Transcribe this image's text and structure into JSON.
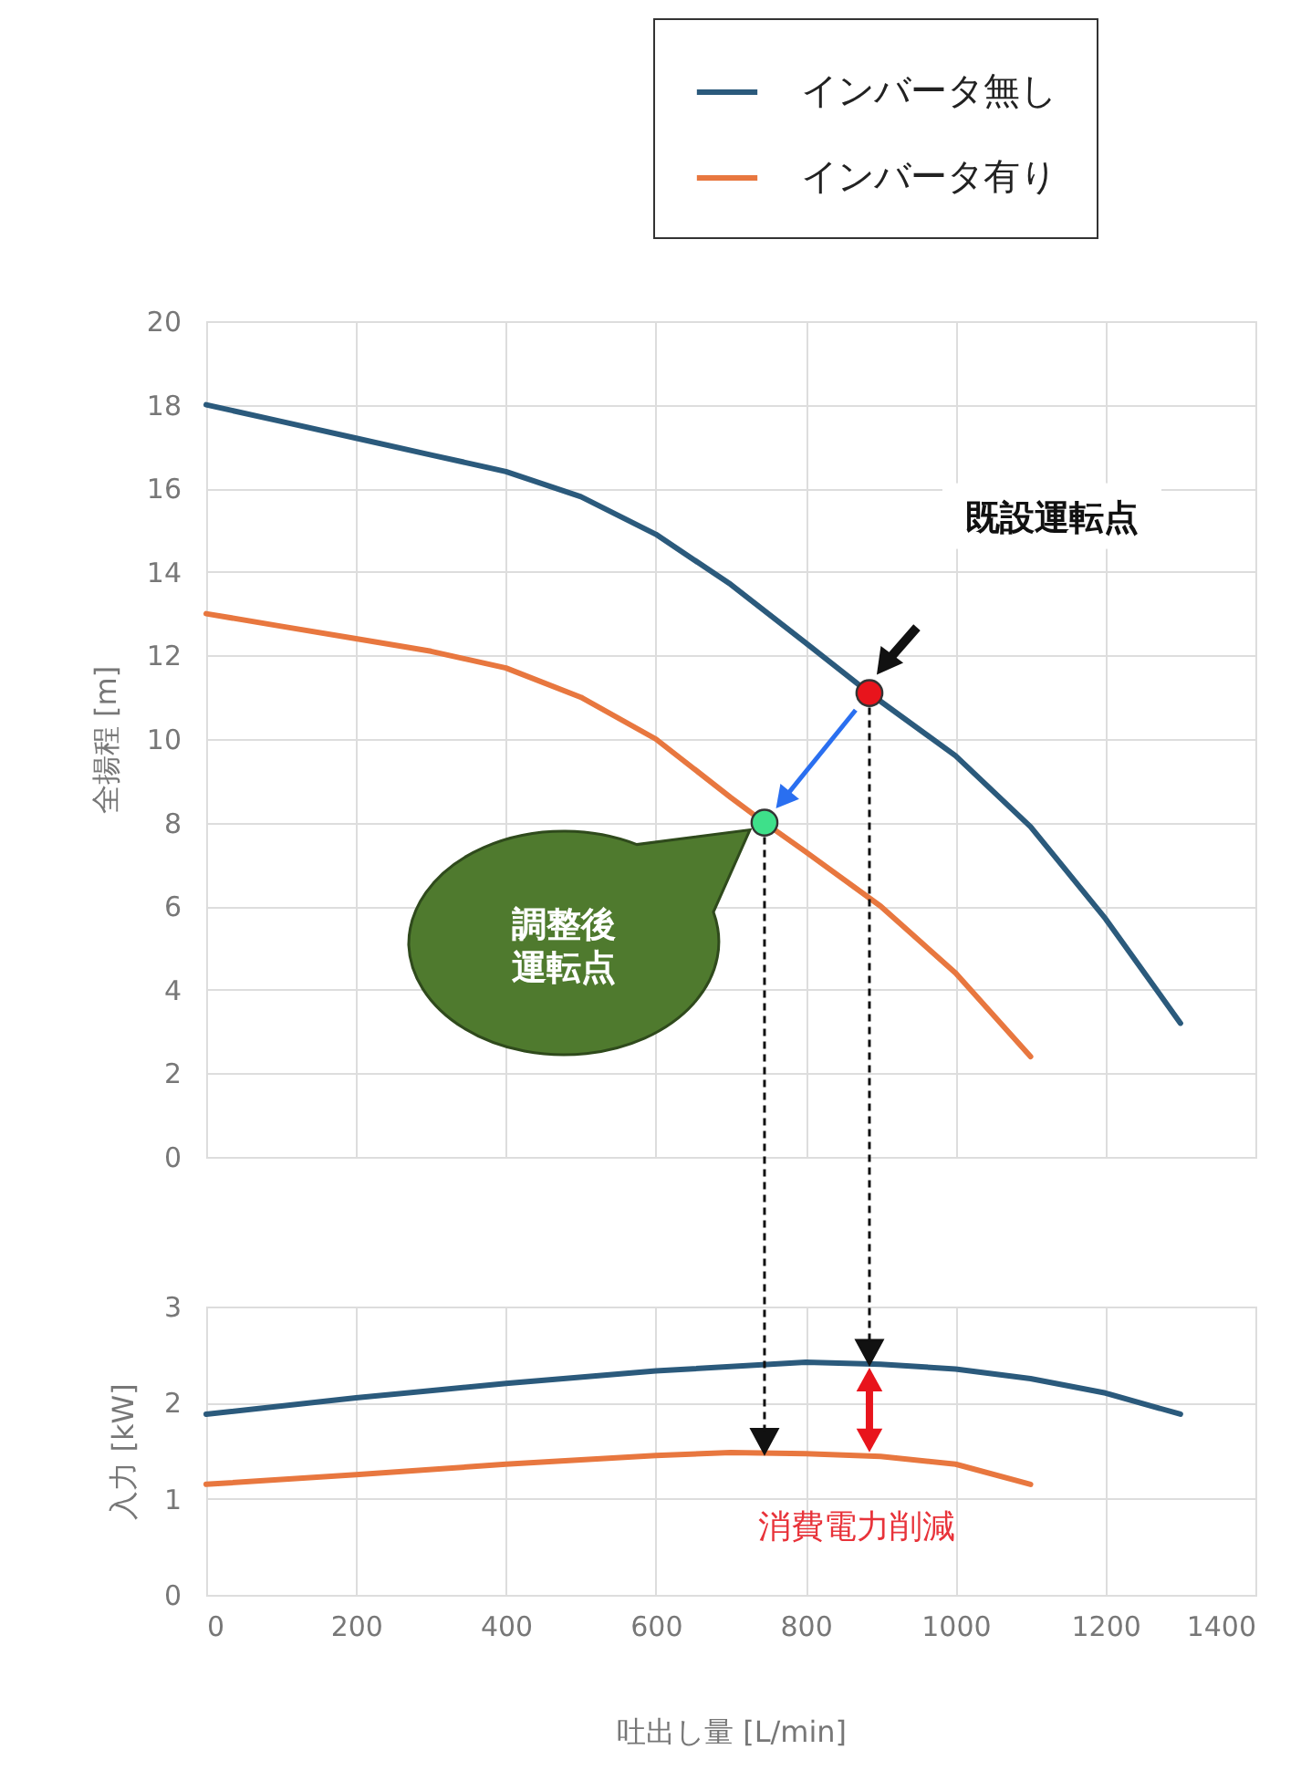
{
  "chart_data": [
    {
      "type": "line",
      "ylabel": "全揚程 [m]",
      "xlim": [
        0,
        1400
      ],
      "xticks": [
        0,
        200,
        400,
        600,
        800,
        1000,
        1200,
        1400
      ],
      "ylim": [
        0,
        20
      ],
      "yticks": [
        0,
        2,
        4,
        6,
        8,
        10,
        12,
        14,
        16,
        18,
        20
      ],
      "grid": true,
      "legend": "top right",
      "tick_labels": "y",
      "series": [
        {
          "name": "インバータ無し",
          "color": "#2b5a7c",
          "x": [
            0,
            100,
            200,
            300,
            400,
            500,
            600,
            700,
            800,
            885,
            900,
            1000,
            1100,
            1200,
            1300
          ],
          "values": [
            18,
            17.6,
            17.2,
            16.8,
            16.4,
            15.8,
            14.9,
            13.7,
            12.3,
            11.1,
            10.9,
            9.6,
            7.9,
            5.7,
            3.2
          ]
        },
        {
          "name": "インバータ有り",
          "color": "#e8773f",
          "x": [
            0,
            100,
            200,
            300,
            400,
            500,
            600,
            700,
            745,
            800,
            900,
            1000,
            1100
          ],
          "values": [
            13,
            12.7,
            12.4,
            12.1,
            11.7,
            11.0,
            10.0,
            8.6,
            8.0,
            7.3,
            6.0,
            4.4,
            2.4
          ]
        },
        {
          "type": "scatter",
          "color": "#e8141c",
          "marker": "circle",
          "x": [
            885
          ],
          "values": [
            11.1
          ]
        },
        {
          "type": "scatter",
          "color": "#3ee08a",
          "marker": "circle",
          "x": [
            745
          ],
          "values": [
            8.0
          ]
        }
      ],
      "annotations": [
        "既設運転点",
        "調整後運転点"
      ]
    },
    {
      "type": "line",
      "xlabel": "吐出し量 [L/min]",
      "ylabel": "入力 [kW]",
      "xlim": [
        0,
        1400
      ],
      "xticks": [
        0,
        200,
        400,
        600,
        800,
        1000,
        1200,
        1400
      ],
      "ylim": [
        0,
        3
      ],
      "yticks": [
        0,
        1,
        2,
        3
      ],
      "grid": true,
      "series": [
        {
          "color": "#2b5a7c",
          "x": [
            0,
            200,
            400,
            600,
            800,
            900,
            1000,
            1100,
            1200,
            1300
          ],
          "values": [
            1.88,
            2.05,
            2.2,
            2.33,
            2.42,
            2.4,
            2.35,
            2.25,
            2.1,
            1.88
          ]
        },
        {
          "color": "#e8773f",
          "x": [
            0,
            200,
            400,
            600,
            700,
            800,
            900,
            1000,
            1100
          ],
          "values": [
            1.15,
            1.25,
            1.36,
            1.45,
            1.48,
            1.47,
            1.44,
            1.36,
            1.15
          ]
        }
      ],
      "annotations": [
        "消費電力削減"
      ]
    }
  ]
}
